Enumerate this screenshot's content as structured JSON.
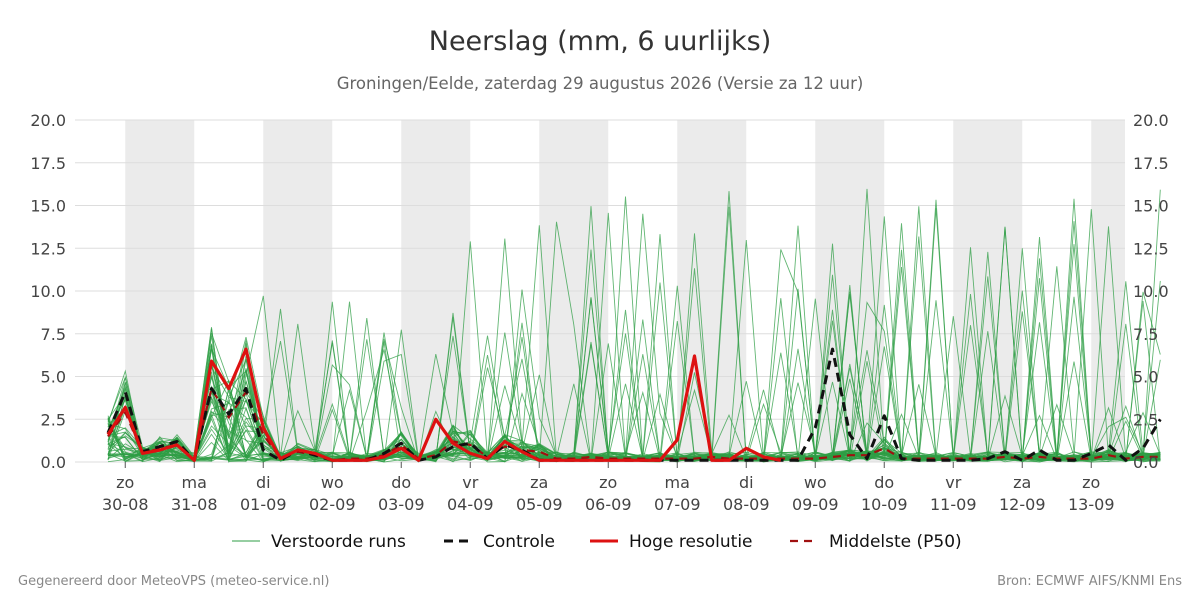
{
  "title": "Neerslag (mm, 6 uurlijks)",
  "subtitle": "Groningen/Eelde, zaterdag 29 augustus 2026 (Versie za 12 uur)",
  "footer_left": "Gegenereerd door MeteoVPS (meteo-service.nl)",
  "footer_right": "Bron: ECMWF AIFS/KNMI Ens",
  "colors": {
    "ensemble": "#2e9e44",
    "control": "#111111",
    "high_res": "#dd1111",
    "median": "#a01010",
    "weekend_shade": "#ebebeb",
    "grid": "#dddddd"
  },
  "chart_data": {
    "type": "line",
    "ylim": [
      0,
      20
    ],
    "y_ticks": [
      "0.0",
      "2.5",
      "5.0",
      "7.5",
      "10.0",
      "12.5",
      "15.0",
      "17.5",
      "20.0"
    ],
    "x_axis": {
      "unit": "6-hourly steps",
      "labels": [
        {
          "day": "zo",
          "date": "30-08"
        },
        {
          "day": "ma",
          "date": "31-08"
        },
        {
          "day": "di",
          "date": "01-09"
        },
        {
          "day": "wo",
          "date": "02-09"
        },
        {
          "day": "do",
          "date": "03-09"
        },
        {
          "day": "vr",
          "date": "04-09"
        },
        {
          "day": "za",
          "date": "05-09"
        },
        {
          "day": "zo",
          "date": "06-09"
        },
        {
          "day": "ma",
          "date": "07-09"
        },
        {
          "day": "di",
          "date": "08-09"
        },
        {
          "day": "wo",
          "date": "09-09"
        },
        {
          "day": "do",
          "date": "10-09"
        },
        {
          "day": "vr",
          "date": "11-09"
        },
        {
          "day": "za",
          "date": "12-09"
        },
        {
          "day": "zo",
          "date": "13-09"
        }
      ]
    },
    "legend": {
      "placement": "bottom",
      "items": [
        "Verstoorde runs",
        "Controle",
        "Hoge resolutie",
        "Middelste (P50)"
      ]
    },
    "series": [
      {
        "name": "Controle",
        "style": "dashed",
        "values": [
          1.7,
          4.1,
          0.6,
          0.9,
          1.2,
          0.1,
          4.3,
          2.8,
          4.3,
          0.7,
          0.1,
          0.7,
          0.4,
          0.1,
          0.1,
          0.1,
          0.5,
          1.1,
          0.1,
          0.3,
          0.9,
          1.1,
          0.2,
          1.0,
          0.7,
          0.1,
          0.1,
          0.1,
          0.1,
          0.1,
          0.1,
          0.1,
          0.1,
          0.1,
          0.1,
          0.1,
          0.1,
          0.1,
          0.1,
          0.1,
          0.1,
          2.0,
          6.6,
          1.6,
          0.2,
          2.7,
          0.2,
          0.1,
          0.1,
          0.1,
          0.1,
          0.2,
          0.6,
          0.1,
          0.7,
          0.1,
          0.1,
          0.5,
          1.0,
          0.1,
          0.8,
          2.5
        ]
      },
      {
        "name": "Hoge resolutie",
        "style": "solid",
        "values": [
          1.6,
          3.2,
          0.5,
          0.7,
          1.0,
          0.1,
          5.9,
          4.3,
          6.6,
          2.0,
          0.2,
          0.7,
          0.5,
          0.1,
          0.1,
          0.1,
          0.3,
          0.8,
          0.1,
          2.5,
          1.1,
          0.5,
          0.2,
          1.2,
          0.6,
          0.1,
          0.1,
          0.1,
          0.1,
          0.1,
          0.1,
          0.1,
          0.1,
          1.3,
          6.2,
          0.1,
          0.1,
          0.8,
          0.3,
          0.1
        ]
      },
      {
        "name": "Middelste (P50)",
        "style": "dashed",
        "values": [
          1.5,
          2.9,
          0.5,
          0.8,
          1.0,
          0.1,
          4.3,
          2.6,
          4.1,
          1.6,
          0.2,
          0.6,
          0.4,
          0.1,
          0.2,
          0.2,
          0.4,
          1.0,
          0.2,
          0.4,
          1.2,
          1.0,
          0.3,
          0.9,
          0.7,
          0.6,
          0.2,
          0.2,
          0.3,
          0.2,
          0.2,
          0.2,
          0.2,
          0.2,
          0.2,
          0.3,
          0.2,
          0.2,
          0.2,
          0.2,
          0.2,
          0.2,
          0.3,
          0.4,
          0.4,
          0.8,
          0.2,
          0.2,
          0.2,
          0.2,
          0.2,
          0.2,
          0.3,
          0.2,
          0.3,
          0.2,
          0.2,
          0.2,
          0.4,
          0.2,
          0.3,
          0.3
        ]
      }
    ]
  }
}
